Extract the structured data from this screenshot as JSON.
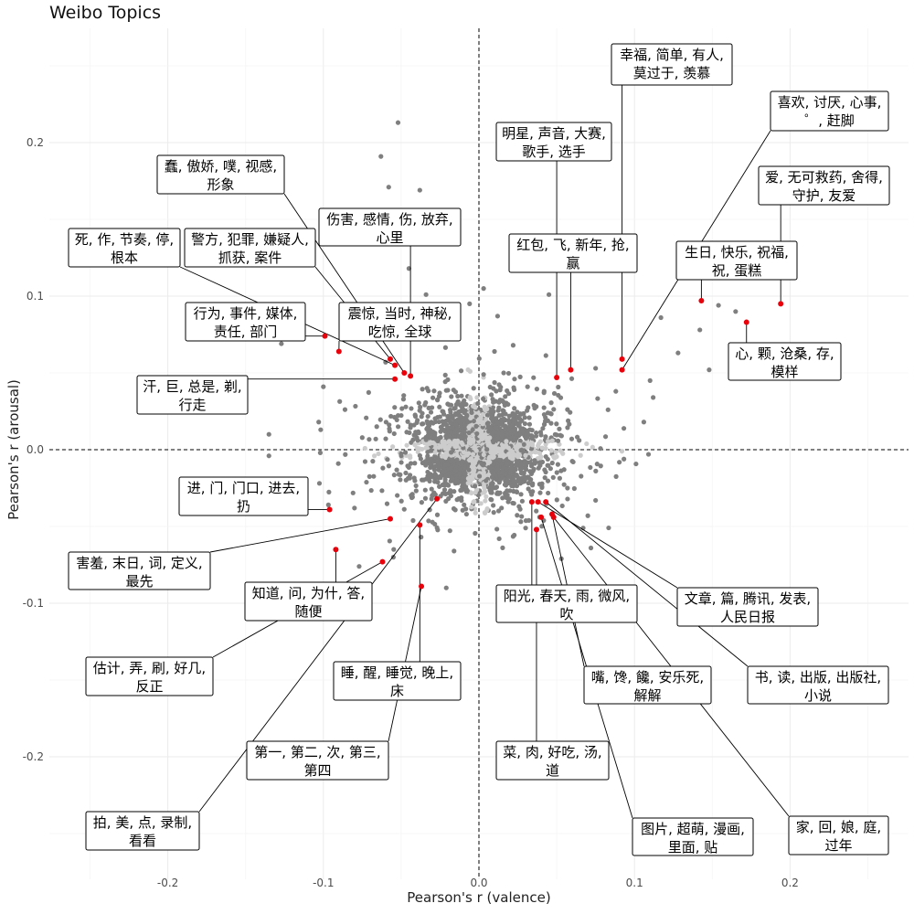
{
  "chart_data": {
    "type": "scatter",
    "title": "Weibo Topics",
    "xlabel": "Pearson's r (valence)",
    "ylabel": "Pearson's r (arousal)",
    "xlim": [
      -0.25,
      0.27
    ],
    "ylim": [
      -0.265,
      0.27
    ],
    "x_ticks": [
      -0.2,
      -0.1,
      0.0,
      0.1,
      0.2
    ],
    "x_tick_labels": [
      "-0.2",
      "-0.1",
      "0.0",
      "0.1",
      "0.2"
    ],
    "y_ticks": [
      -0.2,
      -0.1,
      0.0,
      0.1,
      0.2
    ],
    "y_tick_labels": [
      "-0.2",
      "-0.1",
      "0.0",
      "0.1",
      "0.2"
    ],
    "grid": true,
    "reference_lines": {
      "x": 0.0,
      "y": 0.0,
      "style": "dashed"
    },
    "colors": {
      "highlight": "#e8000b",
      "dark_point": "#7f7f7f",
      "light_point": "#cccccc"
    },
    "outlier_points": [
      {
        "x": -0.052,
        "y": 0.213
      },
      {
        "x": -0.063,
        "y": 0.191
      },
      {
        "x": -0.058,
        "y": 0.171
      },
      {
        "x": -0.038,
        "y": 0.169
      },
      {
        "x": -0.045,
        "y": 0.118
      },
      {
        "x": -0.034,
        "y": 0.101
      },
      {
        "x": 0.003,
        "y": 0.105
      },
      {
        "x": -0.006,
        "y": 0.095
      },
      {
        "x": 0.012,
        "y": 0.087
      },
      {
        "x": 0.045,
        "y": 0.101
      },
      {
        "x": 0.022,
        "y": 0.068
      },
      {
        "x": 0.117,
        "y": 0.086
      },
      {
        "x": 0.128,
        "y": 0.063
      },
      {
        "x": 0.148,
        "y": 0.052
      },
      {
        "x": 0.154,
        "y": 0.094
      },
      {
        "x": 0.165,
        "y": 0.09
      },
      {
        "x": 0.142,
        "y": 0.078
      },
      {
        "x": 0.075,
        "y": 0.053
      },
      {
        "x": 0.11,
        "y": 0.045
      },
      {
        "x": 0.112,
        "y": 0.034
      },
      {
        "x": 0.106,
        "y": 0.018
      },
      {
        "x": -0.127,
        "y": 0.069
      },
      {
        "x": -0.1,
        "y": 0.041
      },
      {
        "x": -0.103,
        "y": 0.018
      },
      {
        "x": -0.135,
        "y": 0.01
      },
      {
        "x": -0.135,
        "y": -0.004
      },
      {
        "x": 0.109,
        "y": -0.003
      },
      {
        "x": -0.102,
        "y": -0.002
      },
      {
        "x": -0.08,
        "y": -0.038
      },
      {
        "x": -0.077,
        "y": -0.076
      },
      {
        "x": -0.055,
        "y": -0.07
      },
      {
        "x": 0.075,
        "y": -0.033
      },
      {
        "x": 0.07,
        "y": -0.043
      },
      {
        "x": 0.072,
        "y": -0.064
      },
      {
        "x": 0.053,
        "y": -0.071
      },
      {
        "x": -0.016,
        "y": -0.066
      },
      {
        "x": -0.021,
        "y": -0.09
      },
      {
        "x": 0.03,
        "y": -0.051
      },
      {
        "x": 0.013,
        "y": -0.058
      },
      {
        "x": -0.008,
        "y": -0.042
      },
      {
        "x": 0.088,
        "y": 0.038
      },
      {
        "x": 0.083,
        "y": 0.026
      },
      {
        "x": -0.06,
        "y": 0.057
      },
      {
        "x": -0.043,
        "y": 0.079
      },
      {
        "x": 0.01,
        "y": 0.064
      },
      {
        "x": 0.003,
        "y": 0.049
      },
      {
        "x": 0.067,
        "y": -0.051
      }
    ],
    "highlighted_topics": [
      {
        "label": "幸福, 简单, 有人, 莫过于, 羡慕",
        "x": 0.092,
        "y": 0.059
      },
      {
        "label": "喜欢, 讨厌, 心事, ゜, 赶脚",
        "x": 0.092,
        "y": 0.052
      },
      {
        "label": "爱, 无可救药, 舍得, 守护, 友爱",
        "x": 0.194,
        "y": 0.095
      },
      {
        "label": "生日, 快乐, 祝福, 祝, 蛋糕",
        "x": 0.143,
        "y": 0.097
      },
      {
        "label": "心, 颗, 沧桑, 存, 模样",
        "x": 0.172,
        "y": 0.083
      },
      {
        "label": "明星, 声音, 大赛, 歌手, 选手",
        "x": 0.05,
        "y": 0.047
      },
      {
        "label": "红包, 飞, 新年, 抢, 赢",
        "x": 0.059,
        "y": 0.052
      },
      {
        "label": "蠢, 傲娇, 噗, 视感, 形象",
        "x": -0.048,
        "y": 0.05
      },
      {
        "label": "伤害, 感情, 伤, 放弃, 心里",
        "x": -0.044,
        "y": 0.048
      },
      {
        "label": "死, 作, 节奏, 停, 根本",
        "x": -0.054,
        "y": 0.055
      },
      {
        "label": "警方, 犯罪, 嫌疑人, 抓获, 案件",
        "x": -0.057,
        "y": 0.059
      },
      {
        "label": "行为, 事件, 媒体, 责任, 部门",
        "x": -0.099,
        "y": 0.074
      },
      {
        "label": "震惊, 当时, 神秘, 吃惊, 全球",
        "x": -0.09,
        "y": 0.064
      },
      {
        "label": "汗, 巨, 总是, 剃, 行走",
        "x": -0.054,
        "y": 0.046
      },
      {
        "label": "进, 门, 门口, 进去, 扔",
        "x": -0.096,
        "y": -0.039
      },
      {
        "label": "害羞, 末日, 词, 定义, 最先",
        "x": -0.057,
        "y": -0.045
      },
      {
        "label": "知道, 问, 为什, 答, 随便",
        "x": -0.092,
        "y": -0.065
      },
      {
        "label": "估计, 弄, 刷, 好几, 反正",
        "x": -0.062,
        "y": -0.073
      },
      {
        "label": "睡, 醒, 睡觉, 晚上, 床",
        "x": -0.038,
        "y": -0.049
      },
      {
        "label": "第一, 第二, 次, 第三, 第四",
        "x": -0.037,
        "y": -0.089
      },
      {
        "label": "拍, 美, 点, 录制, 看看",
        "x": -0.027,
        "y": -0.032
      },
      {
        "label": "阳光, 春天, 雨, 微风, 吹",
        "x": 0.034,
        "y": -0.034
      },
      {
        "label": "文章, 篇, 腾讯, 发表, 人民日报",
        "x": 0.038,
        "y": -0.034
      },
      {
        "label": "嘴, 馋, 饞, 安乐死, 解解",
        "x": 0.047,
        "y": -0.042
      },
      {
        "label": "书, 读, 出版, 出版社, 小说",
        "x": 0.043,
        "y": -0.034
      },
      {
        "label": "菜, 肉, 好吃, 汤, 道",
        "x": 0.037,
        "y": -0.052
      },
      {
        "label": "图片, 超萌, 漫画, 里面, 贴",
        "x": 0.04,
        "y": -0.044
      },
      {
        "label": "家, 回, 娘, 庭, 过年",
        "x": 0.048,
        "y": -0.044
      }
    ]
  },
  "labels": [
    {
      "line1": "幸福, 简单, 有人,",
      "line2": "莫过于, 羡慕"
    },
    {
      "line1": "喜欢, 讨厌, 心事,",
      "line2": "゜, 赶脚"
    },
    {
      "line1": "爱, 无可救药, 舍得,",
      "line2": "守护, 友爱"
    },
    {
      "line1": "生日, 快乐, 祝福,",
      "line2": "祝, 蛋糕"
    },
    {
      "line1": "心, 颗, 沧桑, 存,",
      "line2": "模样"
    },
    {
      "line1": "明星, 声音, 大赛,",
      "line2": "歌手, 选手"
    },
    {
      "line1": "红包, 飞, 新年, 抢,",
      "line2": "赢"
    },
    {
      "line1": "蠢, 傲娇, 噗, 视感,",
      "line2": "形象"
    },
    {
      "line1": "伤害, 感情, 伤, 放弃,",
      "line2": "心里"
    },
    {
      "line1": "死, 作, 节奏, 停,",
      "line2": "根本"
    },
    {
      "line1": "警方, 犯罪, 嫌疑人,",
      "line2": "抓获, 案件"
    },
    {
      "line1": "行为, 事件, 媒体,",
      "line2": "责任, 部门"
    },
    {
      "line1": "震惊, 当时, 神秘,",
      "line2": "吃惊, 全球"
    },
    {
      "line1": "汗, 巨, 总是, 剃,",
      "line2": "行走"
    },
    {
      "line1": "进, 门, 门口, 进去,",
      "line2": "扔"
    },
    {
      "line1": "害羞, 末日, 词, 定义,",
      "line2": "最先"
    },
    {
      "line1": "知道, 问, 为什, 答,",
      "line2": "随便"
    },
    {
      "line1": "估计, 弄, 刷, 好几,",
      "line2": "反正"
    },
    {
      "line1": "睡, 醒, 睡觉, 晚上,",
      "line2": "床"
    },
    {
      "line1": "第一, 第二, 次, 第三,",
      "line2": "第四"
    },
    {
      "line1": "拍, 美, 点, 录制,",
      "line2": "看看"
    },
    {
      "line1": "阳光, 春天, 雨, 微风,",
      "line2": "吹"
    },
    {
      "line1": "文章, 篇, 腾讯, 发表,",
      "line2": "人民日报"
    },
    {
      "line1": "嘴, 馋, 饞, 安乐死,",
      "line2": "解解"
    },
    {
      "line1": "书, 读, 出版, 出版社,",
      "line2": "小说"
    },
    {
      "line1": "菜, 肉, 好吃, 汤,",
      "line2": "道"
    },
    {
      "line1": "图片, 超萌, 漫画,",
      "line2": "里面, 贴"
    },
    {
      "line1": "家, 回, 娘, 庭,",
      "line2": "过年"
    }
  ]
}
